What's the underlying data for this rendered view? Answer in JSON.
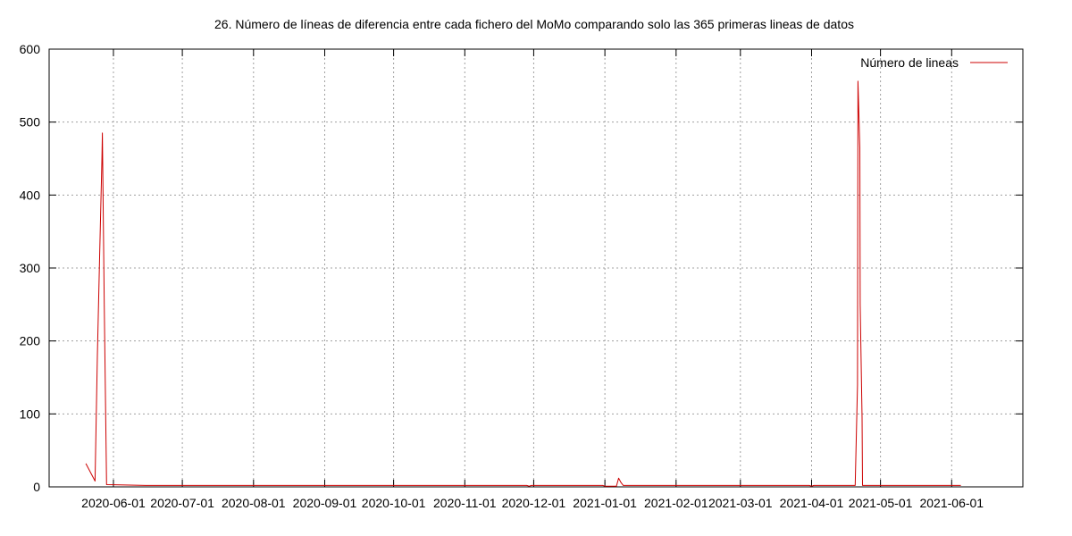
{
  "chart_data": {
    "type": "line",
    "title": "26. Número de líneas de diferencia entre cada fichero del MoMo comparando solo las 365 primeras lineas de datos",
    "xlabel": "",
    "ylabel": "",
    "ylim": [
      0,
      600
    ],
    "xlim": [
      "2020-05-04",
      "2021-07-02"
    ],
    "yticks": [
      0,
      100,
      200,
      300,
      400,
      500,
      600
    ],
    "xticks": [
      "2020-06-01",
      "2020-07-01",
      "2020-08-01",
      "2020-09-01",
      "2020-10-01",
      "2020-11-01",
      "2020-12-01",
      "2021-01-01",
      "2021-02-01",
      "2021-03-01",
      "2021-04-01",
      "2021-05-01",
      "2021-06-01"
    ],
    "grid": true,
    "legend_position": "top-right",
    "series": [
      {
        "name": "Número de lineas",
        "color": "#cc0000",
        "points": [
          [
            "2020-05-20",
            32
          ],
          [
            "2020-05-24",
            8
          ],
          [
            "2020-05-25",
            180
          ],
          [
            "2020-05-26",
            320
          ],
          [
            "2020-05-27",
            450
          ],
          [
            "2020-05-27",
            485
          ],
          [
            "2020-05-28",
            250
          ],
          [
            "2020-05-29",
            3
          ],
          [
            "2020-06-15",
            2
          ],
          [
            "2020-07-15",
            2
          ],
          [
            "2020-08-15",
            2
          ],
          [
            "2020-09-15",
            2
          ],
          [
            "2020-10-15",
            2
          ],
          [
            "2020-11-15",
            2
          ],
          [
            "2020-11-28",
            2
          ],
          [
            "2020-11-29",
            1
          ],
          [
            "2020-11-30",
            2
          ],
          [
            "2020-12-15",
            2
          ],
          [
            "2020-12-31",
            2
          ],
          [
            "2021-01-01",
            1
          ],
          [
            "2021-01-06",
            1
          ],
          [
            "2021-01-07",
            12
          ],
          [
            "2021-01-08",
            6
          ],
          [
            "2021-01-09",
            2
          ],
          [
            "2021-02-15",
            2
          ],
          [
            "2021-03-15",
            2
          ],
          [
            "2021-03-31",
            2
          ],
          [
            "2021-04-01",
            1
          ],
          [
            "2021-04-02",
            2
          ],
          [
            "2021-04-20",
            2
          ],
          [
            "2021-04-21",
            140
          ],
          [
            "2021-04-21",
            556
          ],
          [
            "2021-04-22",
            465
          ],
          [
            "2021-04-22",
            250
          ],
          [
            "2021-04-23",
            95
          ],
          [
            "2021-04-23",
            2
          ],
          [
            "2021-05-15",
            2
          ],
          [
            "2021-06-05",
            2
          ]
        ]
      }
    ]
  }
}
